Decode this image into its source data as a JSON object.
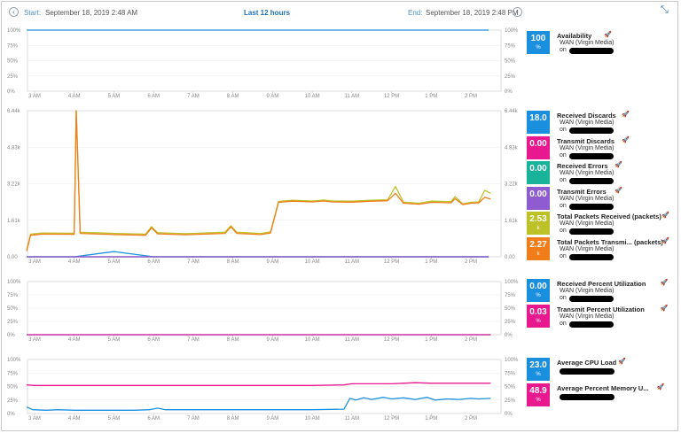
{
  "header": {
    "start_label": "Start:",
    "start_date": "September 18, 2019 2:48 AM",
    "range_title": "Last 12 hours",
    "end_label": "End:",
    "end_date": "September 18, 2019 2:48 PM"
  },
  "icons": {
    "prev": "chevron-left-icon",
    "next": "chevron-right-icon",
    "collapse": "collapse-arrows-icon",
    "rocket": "rocket-icon"
  },
  "x_axis": {
    "ticks": [
      "3 AM",
      "4 AM",
      "5 AM",
      "6 AM",
      "7 AM",
      "8 AM",
      "9 AM",
      "10 AM",
      "11 AM",
      "12 PM",
      "1 PM",
      "2 PM"
    ]
  },
  "colors": {
    "blue": "#1a8fde",
    "magenta": "#e8198e",
    "teal": "#19b39a",
    "purple": "#8e5bd0",
    "olive": "#bcc128",
    "orange": "#f07d19"
  },
  "panels": [
    {
      "id": "availability",
      "y_ticks": [
        "100%",
        "75%",
        "50%",
        "25%",
        "0%"
      ],
      "metrics": [
        {
          "name": "Availability",
          "value": "100",
          "unit": "%",
          "color": "#1a8fde",
          "sub": "WAN (Virgin Media)",
          "on": "on"
        }
      ]
    },
    {
      "id": "packets",
      "y_ticks": [
        "6.44k",
        "4.83k",
        "3.22k",
        "1.61k",
        "0.00"
      ],
      "metrics": [
        {
          "name": "Received Discards",
          "value": "18.0",
          "unit": "",
          "color": "#1a8fde",
          "sub": "WAN (Virgin Media)",
          "on": "on"
        },
        {
          "name": "Transmit Discards",
          "value": "0.00",
          "unit": "",
          "color": "#e8198e",
          "sub": "WAN (Virgin Media)",
          "on": "on"
        },
        {
          "name": "Received Errors",
          "value": "0.00",
          "unit": "",
          "color": "#19b39a",
          "sub": "WAN (Virgin Media)",
          "on": "on"
        },
        {
          "name": "Transmit Errors",
          "value": "0.00",
          "unit": "",
          "color": "#8e5bd0",
          "sub": "WAN (Virgin Media)",
          "on": "on"
        },
        {
          "name": "Total Packets Received (packets)",
          "value": "2.53",
          "unit": "k",
          "color": "#bcc128",
          "sub": "WAN (Virgin Media)",
          "on": "on"
        },
        {
          "name": "Total Packets Transmi... (packets)",
          "value": "2.27",
          "unit": "k",
          "color": "#f07d19",
          "sub": "WAN (Virgin Media)",
          "on": "on"
        }
      ]
    },
    {
      "id": "utilization",
      "y_ticks": [
        "100%",
        "75%",
        "50%",
        "25%",
        "0%"
      ],
      "metrics": [
        {
          "name": "Received Percent Utilization",
          "value": "0.00",
          "unit": "%",
          "color": "#1a8fde",
          "sub": "WAN (Virgin Media)",
          "on": "on"
        },
        {
          "name": "Transmit Percent Utilization",
          "value": "0.03",
          "unit": "%",
          "color": "#e8198e",
          "sub": "WAN (Virgin Media)",
          "on": "on"
        }
      ]
    },
    {
      "id": "cpu",
      "y_ticks": [
        "100%",
        "75%",
        "50%",
        "25%",
        "0%"
      ],
      "metrics": [
        {
          "name": "Average CPU Load",
          "value": "23.0",
          "unit": "%",
          "color": "#1a8fde",
          "sub": "",
          "on": ""
        },
        {
          "name": "Average Percent Memory U...",
          "value": "48.9",
          "unit": "%",
          "color": "#e8198e",
          "sub": "",
          "on": ""
        }
      ]
    }
  ],
  "chart_data": [
    {
      "type": "line",
      "x": [
        "2:48 AM",
        "3 AM",
        "4 AM",
        "5 AM",
        "6 AM",
        "7 AM",
        "8 AM",
        "9 AM",
        "10 AM",
        "11 AM",
        "12 PM",
        "1 PM",
        "2 PM",
        "2:48 PM"
      ],
      "ylim": [
        0,
        100
      ],
      "series": [
        {
          "name": "Availability",
          "color": "#1a8fde",
          "values": [
            100,
            100,
            100,
            100,
            100,
            100,
            100,
            100,
            100,
            100,
            100,
            100,
            100,
            100
          ]
        }
      ]
    },
    {
      "type": "line",
      "ylim": [
        0,
        6440
      ],
      "points": [
        [
          2.9,
          10
        ],
        [
          3.0,
          70
        ],
        [
          3.1,
          65
        ],
        [
          3.2,
          62
        ],
        [
          3.4,
          64
        ],
        [
          3.6,
          62
        ],
        [
          3.8,
          64
        ],
        [
          4.0,
          64
        ],
        [
          4.1,
          100
        ],
        [
          4.15,
          96
        ],
        [
          4.25,
          64
        ],
        [
          4.5,
          62
        ],
        [
          4.8,
          64
        ],
        [
          5.0,
          63
        ],
        [
          5.3,
          62
        ],
        [
          5.6,
          64
        ],
        [
          5.8,
          61
        ],
        [
          5.9,
          63
        ],
        [
          6.1,
          78
        ],
        [
          6.2,
          67
        ],
        [
          6.5,
          66
        ],
        [
          6.8,
          64
        ],
        [
          7.0,
          64
        ],
        [
          7.3,
          66
        ],
        [
          7.6,
          64
        ],
        [
          7.8,
          65
        ],
        [
          7.95,
          66
        ],
        [
          8.1,
          80
        ],
        [
          8.2,
          74
        ],
        [
          8.4,
          62
        ],
        [
          8.7,
          63
        ],
        [
          8.9,
          64
        ],
        [
          9.0,
          63
        ],
        [
          9.3,
          145
        ],
        [
          9.5,
          150
        ],
        [
          9.7,
          149
        ],
        [
          9.9,
          149
        ],
        [
          10.1,
          151
        ],
        [
          10.3,
          150
        ],
        [
          10.5,
          152
        ],
        [
          10.7,
          148
        ],
        [
          10.9,
          147
        ],
        [
          11.1,
          149
        ],
        [
          11.3,
          150
        ],
        [
          11.5,
          151
        ],
        [
          11.7,
          150
        ],
        [
          11.9,
          152
        ],
        [
          12.05,
          154
        ],
        [
          12.2,
          165
        ],
        [
          12.35,
          148
        ],
        [
          12.5,
          146
        ],
        [
          12.8,
          149
        ],
        [
          13.0,
          150
        ],
        [
          13.2,
          149
        ],
        [
          13.4,
          148
        ],
        [
          13.55,
          152
        ],
        [
          13.7,
          148
        ],
        [
          13.9,
          147
        ],
        [
          14.1,
          155
        ],
        [
          14.2,
          146
        ],
        [
          14.3,
          149
        ],
        [
          14.45,
          150
        ]
      ],
      "series": [
        {
          "name": "Received Discards",
          "color": "#1a8fde",
          "values": [
            0,
            0,
            0,
            230,
            0,
            0,
            0,
            0,
            0,
            0,
            0,
            0,
            0,
            0
          ]
        },
        {
          "name": "Transmit Discards",
          "color": "#e8198e",
          "values": [
            0,
            0,
            0,
            0,
            0,
            0,
            0,
            0,
            0,
            0,
            0,
            0,
            0,
            0
          ]
        },
        {
          "name": "Received Errors",
          "color": "#19b39a",
          "values": [
            0,
            0,
            0,
            0,
            0,
            0,
            0,
            0,
            0,
            0,
            0,
            0,
            0,
            0
          ]
        },
        {
          "name": "Transmit Errors",
          "color": "#8e5bd0",
          "values": [
            0,
            0,
            0,
            0,
            0,
            0,
            0,
            0,
            0,
            0,
            0,
            0,
            0,
            0
          ]
        },
        {
          "name": "Total Packets Received (packets)",
          "color": "#bcc128",
          "points": [
            [
              2.8,
              300
            ],
            [
              2.9,
              1000
            ],
            [
              3.2,
              1050
            ],
            [
              4.0,
              1040
            ],
            [
              4.05,
              6440
            ],
            [
              4.15,
              1080
            ],
            [
              5.0,
              1030
            ],
            [
              5.8,
              1000
            ],
            [
              5.95,
              1330
            ],
            [
              6.1,
              1060
            ],
            [
              6.8,
              1020
            ],
            [
              7.8,
              1080
            ],
            [
              7.95,
              1370
            ],
            [
              8.1,
              1080
            ],
            [
              8.7,
              1030
            ],
            [
              8.95,
              1100
            ],
            [
              9.15,
              2440
            ],
            [
              9.5,
              2490
            ],
            [
              10.0,
              2460
            ],
            [
              10.3,
              2500
            ],
            [
              10.5,
              2460
            ],
            [
              11.0,
              2450
            ],
            [
              11.5,
              2490
            ],
            [
              11.9,
              2510
            ],
            [
              12.1,
              3100
            ],
            [
              12.3,
              2410
            ],
            [
              12.7,
              2360
            ],
            [
              13.0,
              2450
            ],
            [
              13.5,
              2430
            ],
            [
              13.6,
              2650
            ],
            [
              13.8,
              2330
            ],
            [
              14.0,
              2400
            ],
            [
              14.2,
              2420
            ],
            [
              14.35,
              2930
            ],
            [
              14.5,
              2800
            ]
          ]
        },
        {
          "name": "Total Packets Transmi... (packets)",
          "color": "#f07d19",
          "points": [
            [
              2.8,
              250
            ],
            [
              2.9,
              950
            ],
            [
              3.2,
              1000
            ],
            [
              4.0,
              990
            ],
            [
              4.05,
              6440
            ],
            [
              4.15,
              1030
            ],
            [
              5.0,
              980
            ],
            [
              5.8,
              950
            ],
            [
              5.95,
              1280
            ],
            [
              6.1,
              1010
            ],
            [
              6.8,
              970
            ],
            [
              7.8,
              1030
            ],
            [
              7.95,
              1320
            ],
            [
              8.1,
              1030
            ],
            [
              8.7,
              980
            ],
            [
              8.95,
              1050
            ],
            [
              9.15,
              2400
            ],
            [
              9.5,
              2450
            ],
            [
              10.0,
              2420
            ],
            [
              10.3,
              2460
            ],
            [
              10.5,
              2420
            ],
            [
              11.0,
              2410
            ],
            [
              11.5,
              2450
            ],
            [
              11.9,
              2470
            ],
            [
              12.1,
              2800
            ],
            [
              12.3,
              2360
            ],
            [
              12.7,
              2320
            ],
            [
              13.0,
              2400
            ],
            [
              13.5,
              2380
            ],
            [
              13.6,
              2560
            ],
            [
              13.8,
              2300
            ],
            [
              14.0,
              2360
            ],
            [
              14.2,
              2380
            ],
            [
              14.35,
              2620
            ],
            [
              14.5,
              2540
            ]
          ]
        }
      ]
    },
    {
      "type": "line",
      "ylim": [
        0,
        100
      ],
      "series": [
        {
          "name": "Received Percent Utilization",
          "color": "#1a8fde",
          "points": [
            [
              2.8,
              0
            ],
            [
              14.5,
              0
            ]
          ]
        },
        {
          "name": "Transmit Percent Utilization",
          "color": "#e8198e",
          "points": [
            [
              2.8,
              0.03
            ],
            [
              14.5,
              0.03
            ]
          ]
        }
      ]
    },
    {
      "type": "line",
      "ylim": [
        0,
        100
      ],
      "series": [
        {
          "name": "Average CPU Load",
          "color": "#1a8fde",
          "points": [
            [
              2.8,
              12
            ],
            [
              2.95,
              7
            ],
            [
              3.3,
              6
            ],
            [
              3.6,
              7
            ],
            [
              4.0,
              6
            ],
            [
              4.5,
              6
            ],
            [
              5.0,
              6
            ],
            [
              5.5,
              6
            ],
            [
              5.9,
              7
            ],
            [
              6.1,
              10
            ],
            [
              6.3,
              7
            ],
            [
              7.0,
              7
            ],
            [
              8.0,
              7
            ],
            [
              9.0,
              7
            ],
            [
              10.0,
              7
            ],
            [
              10.8,
              8
            ],
            [
              10.95,
              28
            ],
            [
              11.1,
              25
            ],
            [
              11.3,
              29
            ],
            [
              11.5,
              26
            ],
            [
              11.8,
              30
            ],
            [
              12.0,
              27
            ],
            [
              12.3,
              29
            ],
            [
              12.6,
              26
            ],
            [
              12.9,
              30
            ],
            [
              13.1,
              25
            ],
            [
              13.4,
              27
            ],
            [
              13.7,
              26
            ],
            [
              14.0,
              28
            ],
            [
              14.2,
              27
            ],
            [
              14.5,
              28
            ]
          ]
        },
        {
          "name": "Average Percent Memory U...",
          "color": "#e8198e",
          "points": [
            [
              2.8,
              53
            ],
            [
              3.0,
              52
            ],
            [
              4.0,
              52
            ],
            [
              5.0,
              52
            ],
            [
              6.0,
              52
            ],
            [
              7.0,
              52
            ],
            [
              8.0,
              52
            ],
            [
              9.0,
              52
            ],
            [
              10.0,
              52
            ],
            [
              10.8,
              53
            ],
            [
              11.0,
              55
            ],
            [
              11.5,
              55
            ],
            [
              12.0,
              55
            ],
            [
              12.3,
              56
            ],
            [
              12.6,
              57
            ],
            [
              13.0,
              56
            ],
            [
              13.5,
              56
            ],
            [
              14.0,
              56
            ],
            [
              14.5,
              56
            ]
          ]
        }
      ]
    }
  ]
}
